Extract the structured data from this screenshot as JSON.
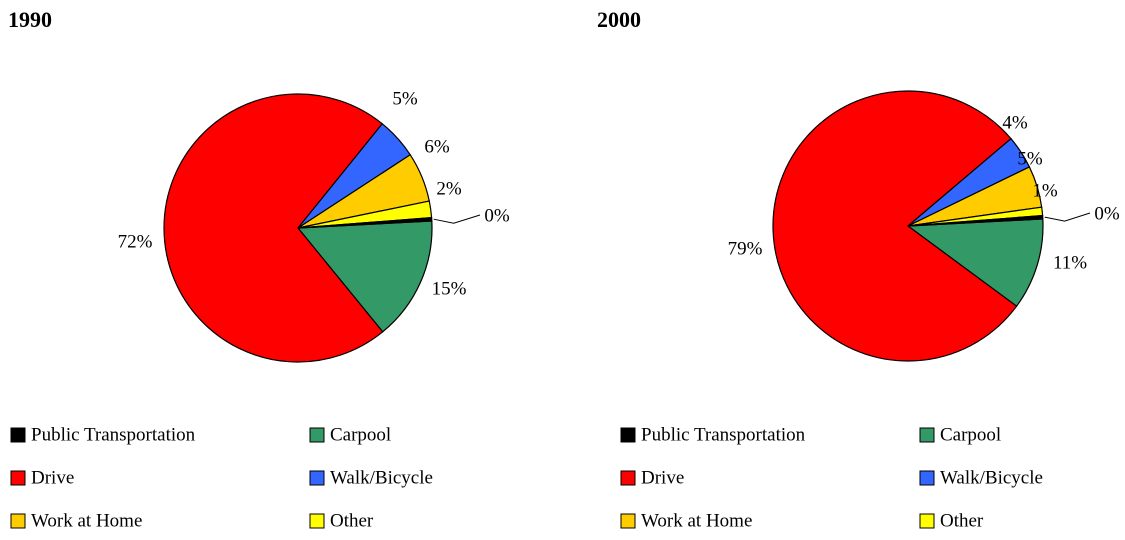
{
  "chart_data": [
    {
      "type": "pie",
      "title": "1990",
      "categories": [
        "Public Transportation",
        "Carpool",
        "Drive",
        "Walk/Bicycle",
        "Work at Home",
        "Other"
      ],
      "values": [
        0.4,
        15,
        72,
        5,
        6,
        2
      ],
      "value_labels": [
        "0%",
        "15%",
        "72%",
        "5%",
        "6%",
        "2%"
      ],
      "colors": [
        "#000000",
        "#339966",
        "#ff0000",
        "#3366ff",
        "#ffcc00",
        "#ffff00"
      ]
    },
    {
      "type": "pie",
      "title": "2000",
      "categories": [
        "Public Transportation",
        "Carpool",
        "Drive",
        "Walk/Bicycle",
        "Work at Home",
        "Other"
      ],
      "values": [
        0.4,
        11,
        79,
        4,
        5,
        1
      ],
      "value_labels": [
        "0%",
        "11%",
        "79%",
        "4%",
        "5%",
        "1%"
      ],
      "colors": [
        "#000000",
        "#339966",
        "#ff0000",
        "#3366ff",
        "#ffcc00",
        "#ffff00"
      ]
    }
  ]
}
